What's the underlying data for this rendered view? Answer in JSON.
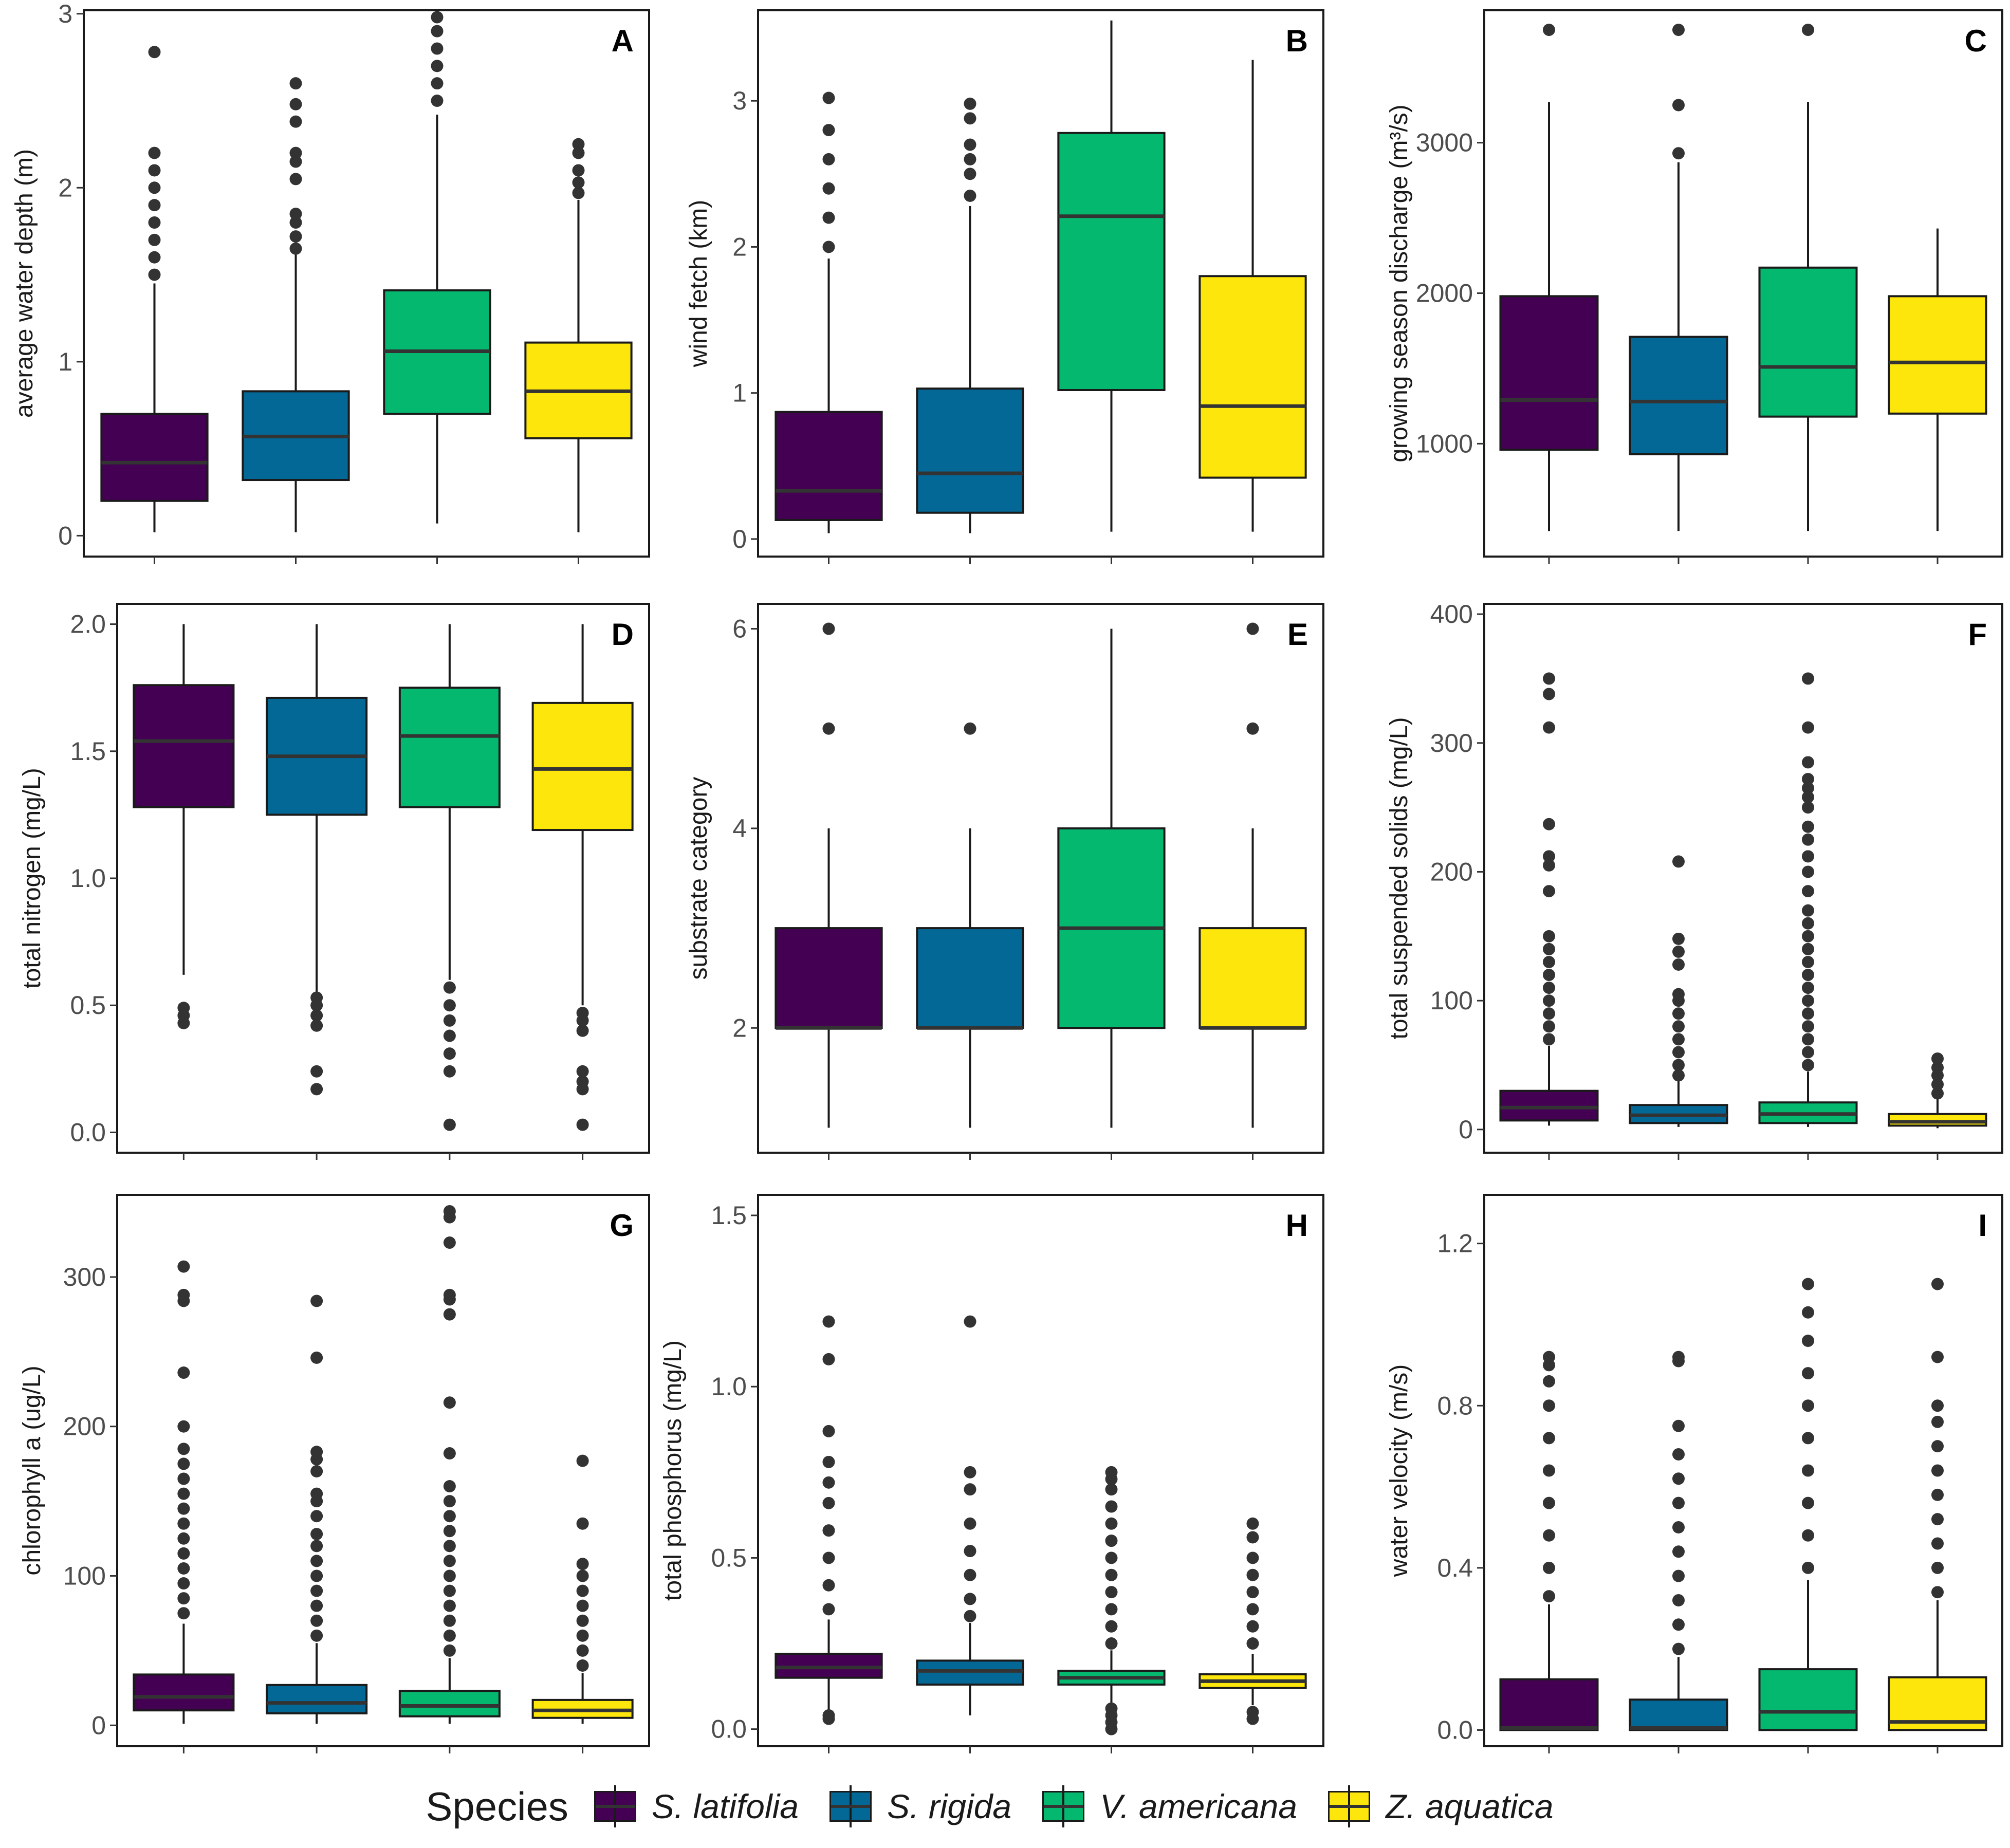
{
  "chart_data": {
    "type": "box",
    "species": [
      "S. latifolia",
      "S. rigida",
      "V. americana",
      "Z. aquatica"
    ],
    "colors": [
      "#440154",
      "#046896",
      "#05b870",
      "#fde60b"
    ],
    "legend": {
      "title": "Species",
      "position": "bottom"
    },
    "panels": [
      {
        "label": "A",
        "ylabel": "average water depth (m)",
        "ylim": [
          -0.12,
          3.02
        ],
        "ticks": [
          0,
          1,
          2,
          3
        ],
        "tick_labels": [
          "0",
          "1",
          "2",
          "3"
        ],
        "boxes": [
          {
            "q1": 0.2,
            "median": 0.42,
            "q3": 0.7,
            "whisker_low": 0.02,
            "whisker_high": 1.45,
            "outliers": [
              1.5,
              1.6,
              1.7,
              1.8,
              1.9,
              2.0,
              2.1,
              2.2,
              2.78
            ]
          },
          {
            "q1": 0.32,
            "median": 0.57,
            "q3": 0.83,
            "whisker_low": 0.02,
            "whisker_high": 1.62,
            "outliers": [
              1.65,
              1.72,
              1.8,
              1.85,
              2.05,
              2.15,
              2.2,
              2.38,
              2.48,
              2.6
            ]
          },
          {
            "q1": 0.7,
            "median": 1.06,
            "q3": 1.41,
            "whisker_low": 0.07,
            "whisker_high": 2.42,
            "outliers": [
              2.5,
              2.6,
              2.7,
              2.8,
              2.9,
              2.98
            ]
          },
          {
            "q1": 0.56,
            "median": 0.83,
            "q3": 1.11,
            "whisker_low": 0.02,
            "whisker_high": 1.93,
            "outliers": [
              1.97,
              2.03,
              2.1,
              2.2,
              2.25
            ]
          }
        ]
      },
      {
        "label": "B",
        "ylabel": "wind fetch (km)",
        "ylim": [
          -0.12,
          3.62
        ],
        "ticks": [
          0,
          1,
          2,
          3
        ],
        "tick_labels": [
          "0",
          "1",
          "2",
          "3"
        ],
        "boxes": [
          {
            "q1": 0.13,
            "median": 0.33,
            "q3": 0.87,
            "whisker_low": 0.04,
            "whisker_high": 1.92,
            "outliers": [
              2.0,
              2.2,
              2.4,
              2.6,
              2.8,
              3.02
            ]
          },
          {
            "q1": 0.18,
            "median": 0.45,
            "q3": 1.03,
            "whisker_low": 0.04,
            "whisker_high": 2.28,
            "outliers": [
              2.35,
              2.5,
              2.6,
              2.7,
              2.88,
              2.98
            ]
          },
          {
            "q1": 1.02,
            "median": 2.21,
            "q3": 2.78,
            "whisker_low": 0.05,
            "whisker_high": 3.55,
            "outliers": []
          },
          {
            "q1": 0.42,
            "median": 0.91,
            "q3": 1.8,
            "whisker_low": 0.05,
            "whisker_high": 3.28,
            "outliers": []
          }
        ]
      },
      {
        "label": "C",
        "ylabel": "growing season discharge (m³/s)",
        "ylim": [
          250,
          3880
        ],
        "ticks": [
          1000,
          2000,
          3000
        ],
        "tick_labels": [
          "1000",
          "2000",
          "3000"
        ],
        "boxes": [
          {
            "q1": 960,
            "median": 1290,
            "q3": 1980,
            "whisker_low": 420,
            "whisker_high": 3270,
            "outliers": [
              3750
            ]
          },
          {
            "q1": 930,
            "median": 1280,
            "q3": 1710,
            "whisker_low": 420,
            "whisker_high": 2870,
            "outliers": [
              2930,
              3250,
              3750
            ]
          },
          {
            "q1": 1180,
            "median": 1510,
            "q3": 2170,
            "whisker_low": 420,
            "whisker_high": 3270,
            "outliers": [
              3750
            ]
          },
          {
            "q1": 1200,
            "median": 1540,
            "q3": 1980,
            "whisker_low": 420,
            "whisker_high": 2430,
            "outliers": []
          }
        ]
      },
      {
        "label": "D",
        "ylabel": "total nitrogen (mg/L)",
        "ylim": [
          -0.08,
          2.08
        ],
        "ticks": [
          0,
          0.5,
          1.0,
          1.5,
          2.0
        ],
        "tick_labels": [
          "0.0",
          "0.5",
          "1.0",
          "1.5",
          "2.0"
        ],
        "boxes": [
          {
            "q1": 1.28,
            "median": 1.54,
            "q3": 1.76,
            "whisker_low": 0.62,
            "whisker_high": 2.0,
            "outliers": [
              0.43,
              0.46,
              0.49
            ]
          },
          {
            "q1": 1.25,
            "median": 1.48,
            "q3": 1.71,
            "whisker_low": 0.55,
            "whisker_high": 2.0,
            "outliers": [
              0.17,
              0.24,
              0.42,
              0.46,
              0.5,
              0.53
            ]
          },
          {
            "q1": 1.28,
            "median": 1.56,
            "q3": 1.75,
            "whisker_low": 0.6,
            "whisker_high": 2.0,
            "outliers": [
              0.03,
              0.24,
              0.31,
              0.38,
              0.44,
              0.5,
              0.57
            ]
          },
          {
            "q1": 1.19,
            "median": 1.43,
            "q3": 1.69,
            "whisker_low": 0.5,
            "whisker_high": 2.0,
            "outliers": [
              0.03,
              0.17,
              0.2,
              0.24,
              0.4,
              0.44,
              0.47
            ]
          }
        ]
      },
      {
        "label": "E",
        "ylabel": "substrate category",
        "ylim": [
          0.75,
          6.25
        ],
        "ticks": [
          2,
          4,
          6
        ],
        "tick_labels": [
          "2",
          "4",
          "6"
        ],
        "boxes": [
          {
            "q1": 2,
            "median": 2,
            "q3": 3,
            "whisker_low": 1,
            "whisker_high": 4,
            "outliers": [
              5,
              6
            ]
          },
          {
            "q1": 2,
            "median": 2,
            "q3": 3,
            "whisker_low": 1,
            "whisker_high": 4,
            "outliers": [
              5
            ]
          },
          {
            "q1": 2,
            "median": 3,
            "q3": 4,
            "whisker_low": 1,
            "whisker_high": 6,
            "outliers": []
          },
          {
            "q1": 2,
            "median": 2,
            "q3": 3,
            "whisker_low": 1,
            "whisker_high": 4,
            "outliers": [
              5,
              6
            ]
          }
        ]
      },
      {
        "label": "F",
        "ylabel": "total suspended solids (mg/L)",
        "ylim": [
          -18,
          408
        ],
        "ticks": [
          0,
          100,
          200,
          300,
          400
        ],
        "tick_labels": [
          "0",
          "100",
          "200",
          "300",
          "400"
        ],
        "boxes": [
          {
            "q1": 7,
            "median": 17,
            "q3": 30,
            "whisker_low": 3,
            "whisker_high": 65,
            "outliers": [
              70,
              80,
              90,
              100,
              110,
              120,
              130,
              140,
              150,
              185,
              205,
              212,
              237,
              312,
              338,
              350
            ]
          },
          {
            "q1": 5,
            "median": 11,
            "q3": 19,
            "whisker_low": 2,
            "whisker_high": 40,
            "outliers": [
              42,
              50,
              60,
              70,
              80,
              90,
              100,
              105,
              128,
              138,
              148,
              208
            ]
          },
          {
            "q1": 5,
            "median": 12,
            "q3": 21,
            "whisker_low": 2,
            "whisker_high": 45,
            "outliers": [
              50,
              60,
              70,
              80,
              90,
              100,
              110,
              120,
              130,
              140,
              150,
              160,
              170,
              185,
              200,
              212,
              225,
              235,
              250,
              258,
              265,
              272,
              285,
              312,
              350
            ]
          },
          {
            "q1": 3,
            "median": 6,
            "q3": 12,
            "whisker_low": 1,
            "whisker_high": 25,
            "outliers": [
              28,
              35,
              42,
              48,
              55
            ]
          }
        ]
      },
      {
        "label": "G",
        "ylabel": "chlorophyll a (ug/L)",
        "ylim": [
          -14,
          355
        ],
        "ticks": [
          0,
          100,
          200,
          300
        ],
        "tick_labels": [
          "0",
          "100",
          "200",
          "300"
        ],
        "boxes": [
          {
            "q1": 10,
            "median": 19,
            "q3": 34,
            "whisker_low": 1,
            "whisker_high": 68,
            "outliers": [
              75,
              85,
              95,
              105,
              115,
              125,
              135,
              145,
              155,
              165,
              175,
              185,
              200,
              236,
              284,
              288,
              307
            ]
          },
          {
            "q1": 8,
            "median": 15,
            "q3": 27,
            "whisker_low": 1,
            "whisker_high": 55,
            "outliers": [
              60,
              70,
              80,
              90,
              100,
              110,
              120,
              128,
              140,
              150,
              155,
              170,
              178,
              183,
              246,
              284
            ]
          },
          {
            "q1": 6,
            "median": 13,
            "q3": 23,
            "whisker_low": 1,
            "whisker_high": 45,
            "outliers": [
              50,
              60,
              70,
              80,
              90,
              100,
              110,
              120,
              130,
              140,
              150,
              160,
              182,
              216,
              275,
              285,
              288,
              323,
              340,
              344
            ]
          },
          {
            "q1": 5,
            "median": 10,
            "q3": 17,
            "whisker_low": 1,
            "whisker_high": 35,
            "outliers": [
              40,
              50,
              60,
              70,
              80,
              90,
              100,
              108,
              135,
              177
            ]
          }
        ]
      },
      {
        "label": "H",
        "ylabel": "total phosphorus (mg/L)",
        "ylim": [
          -0.05,
          1.56
        ],
        "ticks": [
          0,
          0.5,
          1.0,
          1.5
        ],
        "tick_labels": [
          "0.0",
          "0.5",
          "1.0",
          "1.5"
        ],
        "boxes": [
          {
            "q1": 0.15,
            "median": 0.18,
            "q3": 0.22,
            "whisker_low": 0.05,
            "whisker_high": 0.32,
            "outliers": [
              0.03,
              0.04,
              0.35,
              0.42,
              0.5,
              0.58,
              0.66,
              0.72,
              0.78,
              0.87,
              1.08,
              1.19
            ]
          },
          {
            "q1": 0.13,
            "median": 0.17,
            "q3": 0.2,
            "whisker_low": 0.04,
            "whisker_high": 0.31,
            "outliers": [
              0.33,
              0.38,
              0.45,
              0.52,
              0.6,
              0.7,
              0.75,
              1.19
            ]
          },
          {
            "q1": 0.13,
            "median": 0.15,
            "q3": 0.17,
            "whisker_low": 0.07,
            "whisker_high": 0.23,
            "outliers": [
              0.0,
              0.02,
              0.04,
              0.06,
              0.25,
              0.3,
              0.35,
              0.4,
              0.45,
              0.5,
              0.55,
              0.6,
              0.65,
              0.7,
              0.73,
              0.75
            ]
          },
          {
            "q1": 0.12,
            "median": 0.14,
            "q3": 0.16,
            "whisker_low": 0.07,
            "whisker_high": 0.22,
            "outliers": [
              0.03,
              0.05,
              0.25,
              0.3,
              0.35,
              0.4,
              0.45,
              0.5,
              0.56,
              0.6
            ]
          }
        ]
      },
      {
        "label": "I",
        "ylabel": "water velocity (m/s)",
        "ylim": [
          -0.04,
          1.32
        ],
        "ticks": [
          0,
          0.4,
          0.8,
          1.2
        ],
        "tick_labels": [
          "0.0",
          "0.4",
          "0.8",
          "1.2"
        ],
        "boxes": [
          {
            "q1": 0.0,
            "median": 0.005,
            "q3": 0.125,
            "whisker_low": 0.0,
            "whisker_high": 0.31,
            "outliers": [
              0.33,
              0.4,
              0.48,
              0.56,
              0.64,
              0.72,
              0.8,
              0.86,
              0.9,
              0.92
            ]
          },
          {
            "q1": 0.0,
            "median": 0.005,
            "q3": 0.075,
            "whisker_low": 0.0,
            "whisker_high": 0.18,
            "outliers": [
              0.2,
              0.26,
              0.32,
              0.38,
              0.44,
              0.5,
              0.56,
              0.62,
              0.68,
              0.75,
              0.91,
              0.92
            ]
          },
          {
            "q1": 0.0,
            "median": 0.045,
            "q3": 0.15,
            "whisker_low": 0.0,
            "whisker_high": 0.37,
            "outliers": [
              0.4,
              0.48,
              0.56,
              0.64,
              0.72,
              0.8,
              0.88,
              0.96,
              1.03,
              1.1
            ]
          },
          {
            "q1": 0.0,
            "median": 0.02,
            "q3": 0.13,
            "whisker_low": 0.0,
            "whisker_high": 0.32,
            "outliers": [
              0.34,
              0.4,
              0.46,
              0.52,
              0.58,
              0.64,
              0.7,
              0.76,
              0.8,
              0.92,
              1.1
            ]
          }
        ]
      }
    ]
  }
}
